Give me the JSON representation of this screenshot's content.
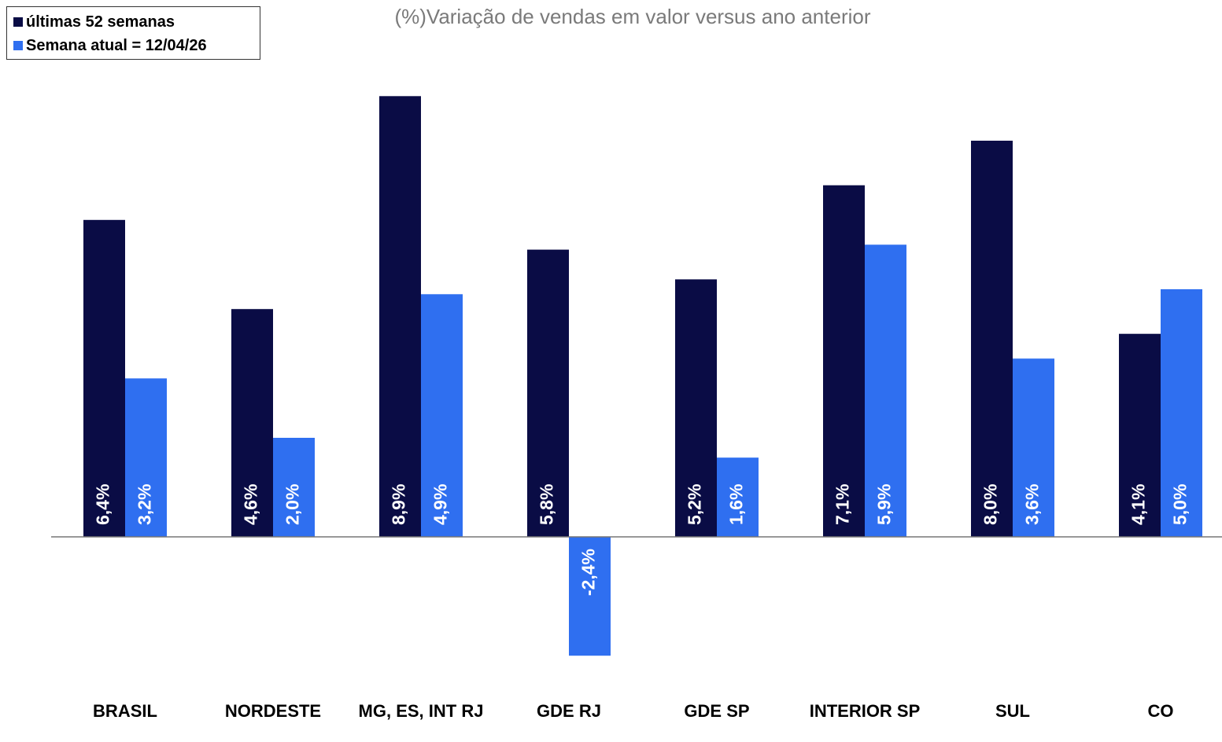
{
  "chart_data": {
    "type": "bar",
    "title": "(%)Variação de vendas em valor versus ano anterior",
    "categories": [
      "BRASIL",
      "NORDESTE",
      "MG, ES, INT RJ",
      "GDE RJ",
      "GDE SP",
      "INTERIOR SP",
      "SUL",
      "CO"
    ],
    "series": [
      {
        "name": "últimas 52 semanas",
        "color": "#0a0c45",
        "values": [
          6.4,
          4.6,
          8.9,
          5.8,
          5.2,
          7.1,
          8.0,
          4.1
        ],
        "value_labels": [
          "6,4%",
          "4,6%",
          "8,9%",
          "5,8%",
          "5,2%",
          "7,1%",
          "8,0%",
          "4,1%"
        ]
      },
      {
        "name": "Semana atual = 12/04/26",
        "color": "#2f6ff0",
        "values": [
          3.2,
          2.0,
          4.9,
          -2.4,
          1.6,
          5.9,
          3.6,
          5.0
        ],
        "value_labels": [
          "3,2%",
          "2,0%",
          "4,9%",
          "-2,4%",
          "1,6%",
          "5,9%",
          "3,6%",
          "5,0%"
        ]
      }
    ],
    "ylim": [
      -3,
      9
    ],
    "legend": "top-left"
  }
}
